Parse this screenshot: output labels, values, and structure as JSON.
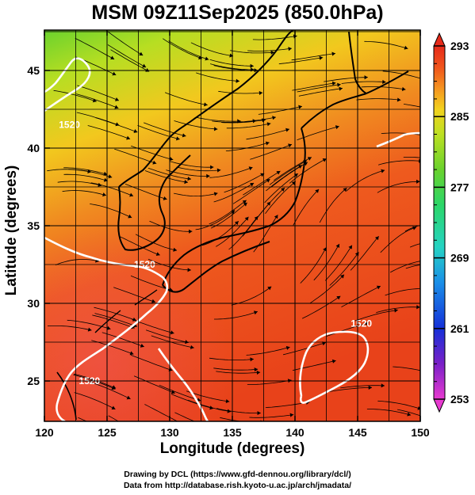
{
  "title": "MSM 09Z11Sep2025 (850.0hPa)",
  "x_axis": {
    "label": "Longitude (degrees)",
    "range": [
      120,
      150
    ],
    "ticks": [
      "120",
      "125",
      "130",
      "135",
      "140",
      "145",
      "150"
    ]
  },
  "y_axis": {
    "label": "Latitude  (degrees)",
    "range": [
      22.4,
      47.6
    ],
    "ticks": [
      "25",
      "30",
      "35",
      "40",
      "45"
    ]
  },
  "colorbar": {
    "ticks": [
      "253",
      "261",
      "269",
      "277",
      "285",
      "293"
    ],
    "range": [
      253,
      293
    ],
    "palette": [
      "#e83ad0",
      "#7a20c8",
      "#1530d8",
      "#1a8fe8",
      "#25d3c3",
      "#2bd668",
      "#6ad22d",
      "#bde022",
      "#f2d21e",
      "#f59420",
      "#f0541c",
      "#e62a1a"
    ]
  },
  "contours": [
    {
      "label": "1520",
      "lon": 122.0,
      "lat": 41.3
    },
    {
      "label": "1520",
      "lon": 128.0,
      "lat": 32.3
    },
    {
      "label": "1520",
      "lon": 123.6,
      "lat": 24.8
    },
    {
      "label": "1520",
      "lon": 145.3,
      "lat": 28.5
    }
  ],
  "credits": {
    "line1": "Drawing by DCL (https://www.gfd-dennou.org/library/dcl/)",
    "line2": "Data from http://database.rish.kyoto-u.ac.jp/arch/jmadata/"
  }
}
